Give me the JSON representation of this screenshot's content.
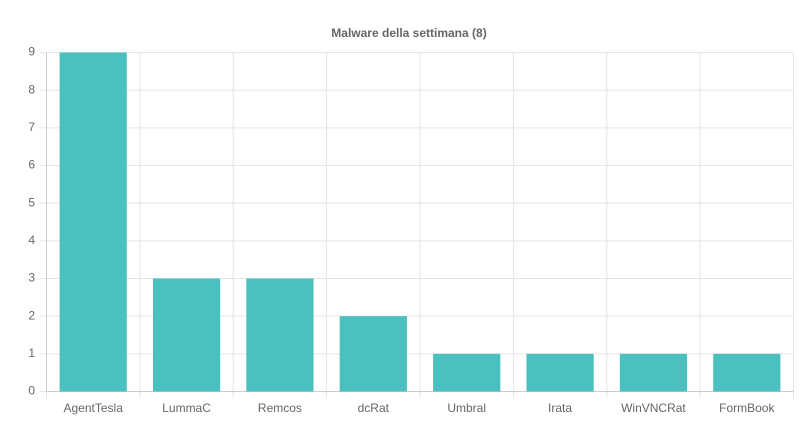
{
  "chart_data": {
    "type": "bar",
    "title": "Malware della settimana (8)",
    "categories": [
      "AgentTesla",
      "LummaC",
      "Remcos",
      "dcRat",
      "Umbral",
      "Irata",
      "WinVNCRat",
      "FormBook"
    ],
    "values": [
      9,
      3,
      3,
      2,
      1,
      1,
      1,
      1
    ],
    "color": "#4bc0c0",
    "ylim": [
      0,
      9
    ],
    "yticks": [
      0,
      1,
      2,
      3,
      4,
      5,
      6,
      7,
      8,
      9
    ],
    "grid": true
  }
}
